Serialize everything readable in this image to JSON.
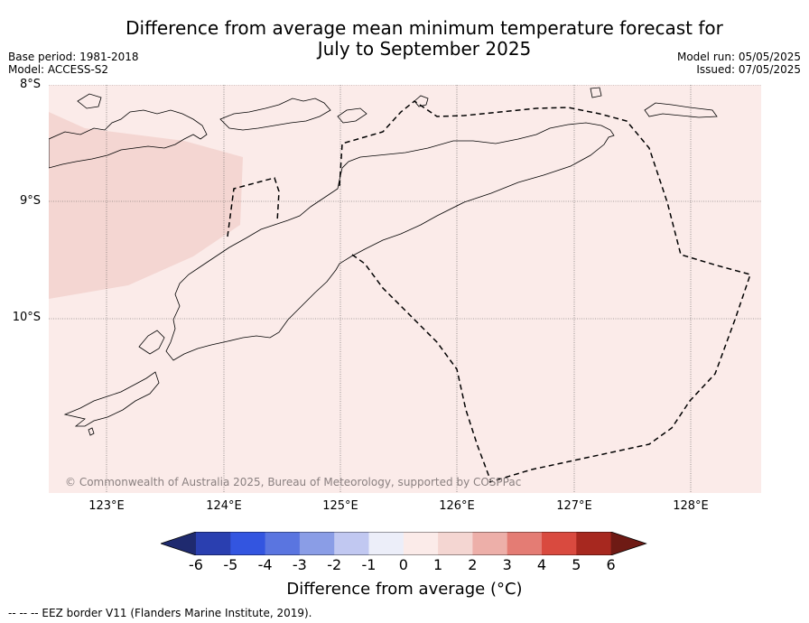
{
  "header": {
    "title_line1": "Difference from average mean minimum temperature forecast for",
    "title_line2": "July to September 2025",
    "base_period": "Base period: 1981-2018",
    "model": "Model: ACCESS-S2",
    "model_run": "Model run: 05/05/2025",
    "issued": "Issued: 07/05/2025"
  },
  "map": {
    "lat_labels": [
      "8°S",
      "9°S",
      "10°S"
    ],
    "lon_labels": [
      "123°E",
      "124°E",
      "125°E",
      "126°E",
      "127°E",
      "128°E"
    ],
    "background_color": "#fbebe9",
    "anomaly_color": "#f4d6d2",
    "copyright": "© Commonwealth of Australia 2025, Bureau of Meteorology, supported by COSPPac"
  },
  "colorbar": {
    "ticks": [
      "-6",
      "-5",
      "-4",
      "-3",
      "-2",
      "-1",
      "0",
      "1",
      "2",
      "3",
      "4",
      "5",
      "6"
    ],
    "colors": [
      "#1f2a6f",
      "#2a3fb0",
      "#3355e0",
      "#5a75e0",
      "#8a9de6",
      "#c1c8f1",
      "#eceef9",
      "#fbebe9",
      "#f4d6d2",
      "#edafa9",
      "#e47c74",
      "#d94a3f",
      "#a7281f",
      "#6e1a14"
    ],
    "label": "Difference from average (°C)"
  },
  "legend": {
    "eez_note": "--  --  -- EEZ border V11 (Flanders Marine Institute, 2019)."
  }
}
